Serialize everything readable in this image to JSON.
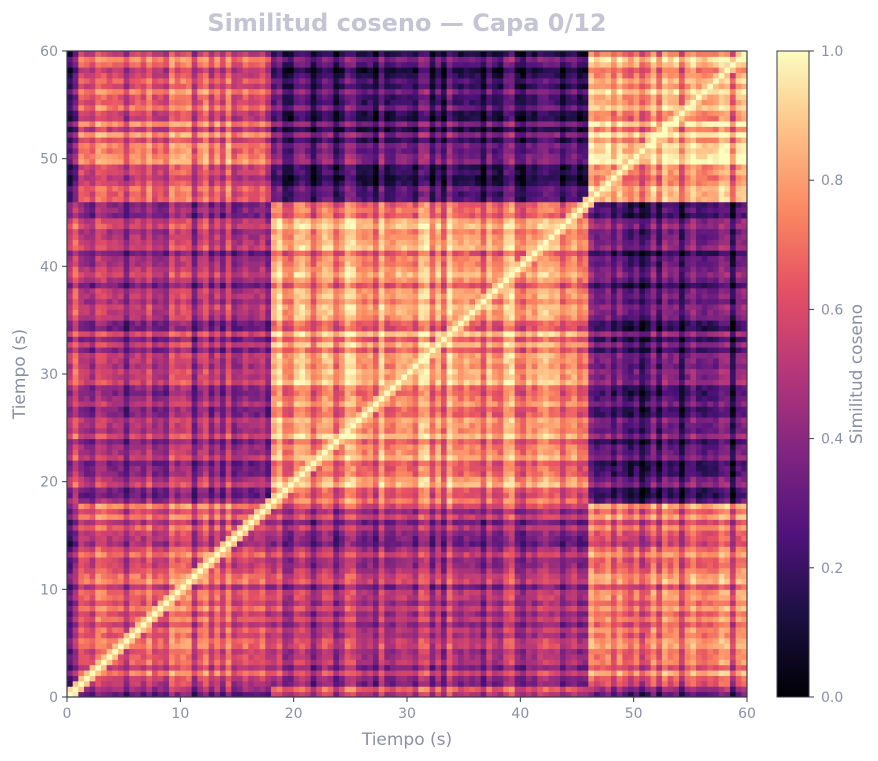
{
  "chart_data": {
    "type": "heatmap",
    "title": "Similitud coseno — Capa 0/12",
    "xlabel": "Tiempo (s)",
    "ylabel": "Tiempo (s)",
    "xlim": [
      0,
      60
    ],
    "ylim": [
      0,
      60
    ],
    "xticks": [
      "0",
      "10",
      "20",
      "30",
      "40",
      "50",
      "60"
    ],
    "yticks": [
      "0",
      "10",
      "20",
      "30",
      "40",
      "50",
      "60"
    ],
    "colormap": "magma",
    "colorbar": {
      "label": "Similitud coseno",
      "range": [
        0.0,
        1.0
      ],
      "ticks": [
        "0.0",
        "0.2",
        "0.4",
        "0.6",
        "0.8",
        "1.0"
      ]
    },
    "segments_s": [
      {
        "start": 0,
        "end": 1
      },
      {
        "start": 1,
        "end": 18
      },
      {
        "start": 18,
        "end": 46
      },
      {
        "start": 46,
        "end": 60
      }
    ],
    "block_similarity": [
      [
        0.95,
        0.35,
        0.55,
        0.3
      ],
      [
        0.35,
        0.6,
        0.45,
        0.65
      ],
      [
        0.55,
        0.45,
        0.75,
        0.25
      ],
      [
        0.3,
        0.65,
        0.25,
        0.8
      ]
    ],
    "diagonal_value": 1.0
  },
  "colors": {
    "axis_text": "#8a8fa5",
    "title_text": "#c4c4d4",
    "frame": "#3a3a4a"
  }
}
